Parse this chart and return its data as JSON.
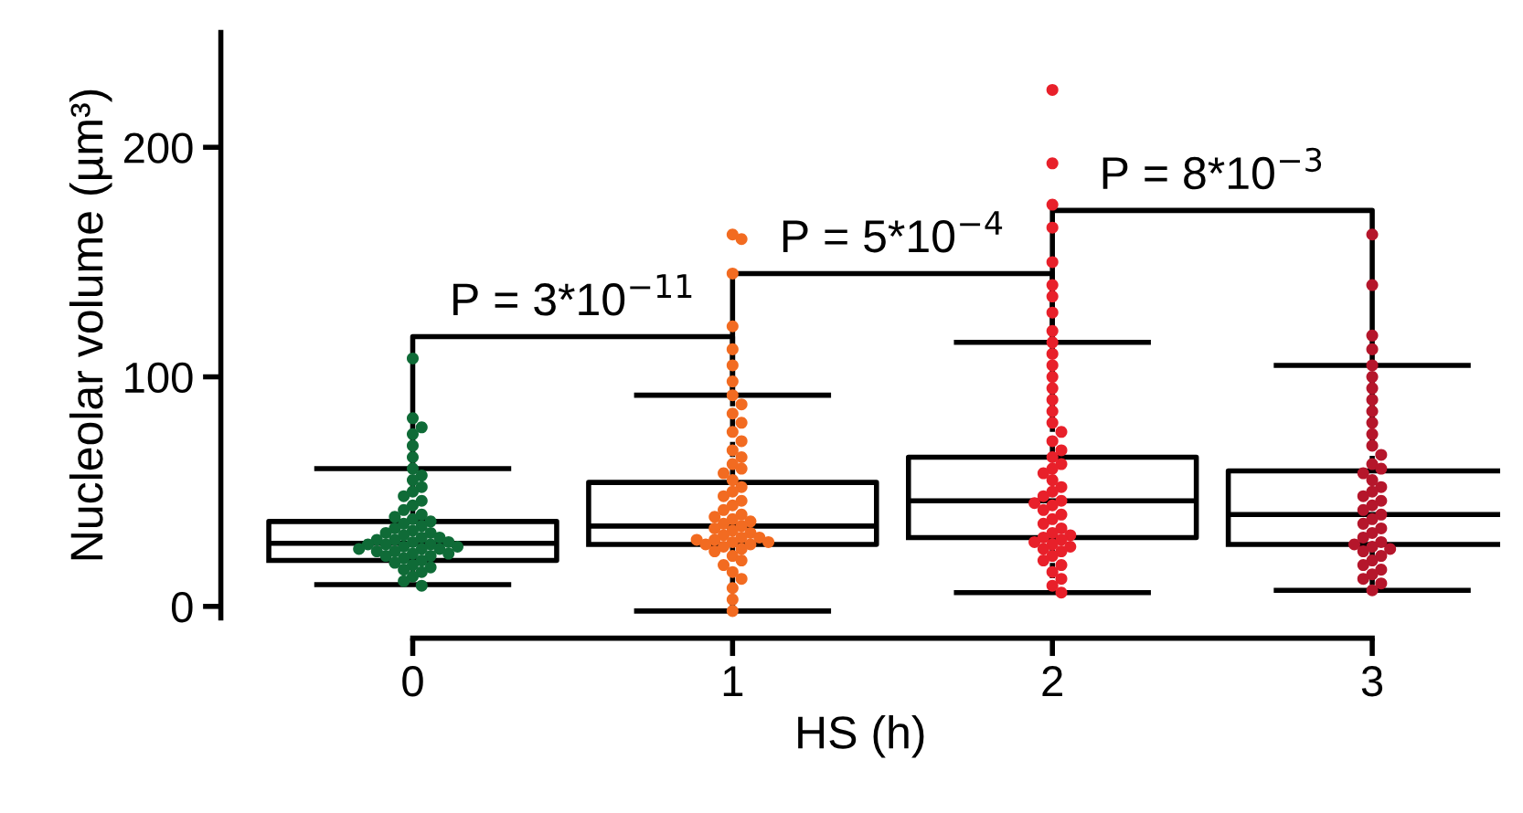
{
  "chart_data": {
    "type": "box",
    "xlabel": "HS (h)",
    "ylabel": "Nucleolar volume (µm³)",
    "categories": [
      "0",
      "1",
      "2",
      "3"
    ],
    "ylim": [
      -5,
      250
    ],
    "yticks": [
      0,
      100,
      200
    ],
    "grid": false,
    "legend": false,
    "boxes": [
      {
        "low": 9.5,
        "q1": 20,
        "median": 27.5,
        "q3": 37,
        "high": 60
      },
      {
        "low": -2,
        "q1": 27,
        "median": 35,
        "q3": 54,
        "high": 92
      },
      {
        "low": 6,
        "q1": 30,
        "median": 46,
        "q3": 65,
        "high": 115
      },
      {
        "low": 7,
        "q1": 27,
        "median": 40,
        "q3": 59,
        "high": 105
      }
    ],
    "series": [
      {
        "type": "scatter",
        "color": "#0f6b37",
        "x": [
          "0",
          "0",
          "0",
          "0",
          "0",
          "0",
          "0",
          "0",
          "0",
          "0",
          "0",
          "0",
          "0",
          "0",
          "0",
          "0",
          "0",
          "0",
          "0",
          "0",
          "0",
          "0",
          "0",
          "0",
          "0",
          "0",
          "0",
          "0",
          "0",
          "0",
          "0",
          "0",
          "0",
          "0",
          "0",
          "0",
          "0",
          "0",
          "0",
          "0",
          "0",
          "0",
          "0",
          "0",
          "0",
          "0",
          "0",
          "0",
          "0",
          "0",
          "0",
          "0",
          "0",
          "0",
          "0",
          "0"
        ],
        "values": [
          108,
          82,
          78,
          75,
          70,
          65,
          60,
          57,
          55,
          52,
          50,
          48,
          46,
          44,
          42,
          40,
          39,
          38,
          37,
          36,
          35,
          34,
          33,
          32,
          32,
          31,
          30,
          30,
          29,
          29,
          28,
          28,
          27,
          27,
          27,
          26,
          26,
          25,
          25,
          25,
          24,
          24,
          23,
          23,
          22,
          22,
          21,
          20,
          19,
          18,
          17,
          16,
          15,
          13,
          11,
          9
        ]
      },
      {
        "type": "scatter",
        "color": "#f26b21",
        "x": [
          "1",
          "1",
          "1",
          "1",
          "1",
          "1",
          "1",
          "1",
          "1",
          "1",
          "1",
          "1",
          "1",
          "1",
          "1",
          "1",
          "1",
          "1",
          "1",
          "1",
          "1",
          "1",
          "1",
          "1",
          "1",
          "1",
          "1",
          "1",
          "1",
          "1",
          "1",
          "1",
          "1",
          "1",
          "1",
          "1",
          "1",
          "1",
          "1",
          "1",
          "1",
          "1",
          "1",
          "1",
          "1",
          "1",
          "1",
          "1",
          "1",
          "1",
          "1",
          "1",
          "1",
          "1"
        ],
        "values": [
          162,
          160,
          145,
          122,
          112,
          105,
          98,
          92,
          88,
          84,
          80,
          76,
          72,
          68,
          65,
          62,
          60,
          58,
          55,
          52,
          50,
          48,
          46,
          44,
          42,
          40,
          39,
          38,
          37,
          36,
          35,
          34,
          33,
          32,
          31,
          30,
          30,
          29,
          29,
          28,
          28,
          27,
          27,
          26,
          25,
          24,
          22,
          20,
          18,
          15,
          12,
          8,
          3,
          -2
        ]
      },
      {
        "type": "scatter",
        "color": "#e8202a",
        "x": [
          "2",
          "2",
          "2",
          "2",
          "2",
          "2",
          "2",
          "2",
          "2",
          "2",
          "2",
          "2",
          "2",
          "2",
          "2",
          "2",
          "2",
          "2",
          "2",
          "2",
          "2",
          "2",
          "2",
          "2",
          "2",
          "2",
          "2",
          "2",
          "2",
          "2",
          "2",
          "2",
          "2",
          "2",
          "2",
          "2",
          "2",
          "2",
          "2",
          "2",
          "2",
          "2",
          "2",
          "2",
          "2",
          "2",
          "2",
          "2",
          "2",
          "2",
          "2",
          "2"
        ],
        "values": [
          225,
          193,
          175,
          165,
          150,
          140,
          135,
          128,
          120,
          115,
          110,
          105,
          100,
          95,
          90,
          85,
          80,
          76,
          72,
          68,
          65,
          62,
          60,
          58,
          55,
          52,
          50,
          48,
          46,
          45,
          44,
          42,
          40,
          38,
          36,
          34,
          32,
          31,
          30,
          29,
          28,
          27,
          26,
          25,
          24,
          22,
          20,
          18,
          15,
          12,
          9,
          6
        ]
      },
      {
        "type": "scatter",
        "color": "#b5162b",
        "x": [
          "3",
          "3",
          "3",
          "3",
          "3",
          "3",
          "3",
          "3",
          "3",
          "3",
          "3",
          "3",
          "3",
          "3",
          "3",
          "3",
          "3",
          "3",
          "3",
          "3",
          "3",
          "3",
          "3",
          "3",
          "3",
          "3",
          "3",
          "3",
          "3",
          "3",
          "3",
          "3",
          "3",
          "3",
          "3",
          "3",
          "3",
          "3",
          "3",
          "3",
          "3",
          "3"
        ],
        "values": [
          162,
          140,
          118,
          112,
          105,
          100,
          95,
          90,
          85,
          80,
          75,
          70,
          66,
          62,
          60,
          58,
          55,
          52,
          50,
          48,
          46,
          44,
          42,
          40,
          38,
          36,
          34,
          32,
          30,
          28,
          27,
          26,
          25,
          24,
          22,
          20,
          18,
          16,
          14,
          12,
          10,
          7
        ]
      }
    ],
    "annotations": [
      "P = 3*10$^{−11}$",
      "P = 5*10$^{−4}$",
      "P = 8*10$^{−3}$"
    ]
  }
}
